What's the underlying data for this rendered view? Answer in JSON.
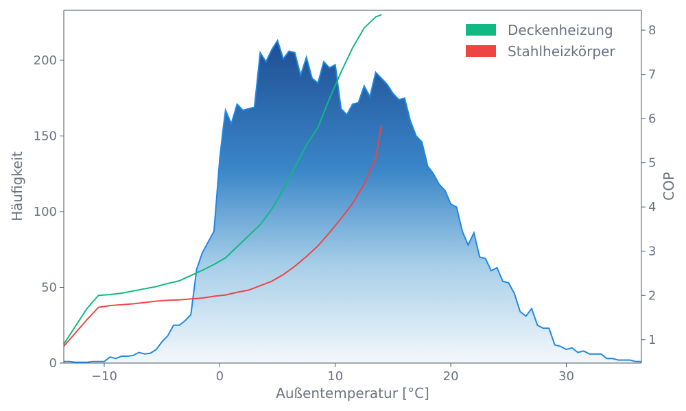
{
  "chart_data": {
    "type": "area",
    "xlabel": "Außentemperatur [°C]",
    "ylabel_left": "Häufigkeit",
    "ylabel_right": "COP",
    "xlim": [
      -13.5,
      36.5
    ],
    "ylim_left": [
      0,
      233
    ],
    "ylim_right": [
      0.47,
      8.45
    ],
    "x_ticks": [
      -10,
      0,
      10,
      20,
      30
    ],
    "x_tick_labels": [
      "−10",
      "0",
      "10",
      "20",
      "30"
    ],
    "y_left_ticks": [
      0,
      50,
      100,
      150,
      200
    ],
    "y_left_tick_labels": [
      "0",
      "50",
      "100",
      "150",
      "200"
    ],
    "y_right_ticks": [
      1,
      2,
      3,
      4,
      5,
      6,
      7,
      8
    ],
    "y_right_tick_labels": [
      "1",
      "2",
      "3",
      "4",
      "5",
      "6",
      "7",
      "8"
    ],
    "grid": false,
    "legend_position": "top-right",
    "colors": {
      "histogram_line": "#1e88e5",
      "fill_top": "#1f4e93",
      "fill_mid": "#3a86c8",
      "fill_low": "#a8cfe8",
      "fill_bottom": "#f4f8fc",
      "axis": "#4b5563",
      "text": "#6b7280"
    },
    "histogram": {
      "x": [
        -13.5,
        -13,
        -12.5,
        -12,
        -11.5,
        -11,
        -10.5,
        -10,
        -9.5,
        -9,
        -8.5,
        -8,
        -7.5,
        -7,
        -6.5,
        -6,
        -5.5,
        -5,
        -4.5,
        -4,
        -3.5,
        -3,
        -2.5,
        -2,
        -1.5,
        -1,
        -0.5,
        0,
        0.3,
        0.5,
        1,
        1.5,
        2,
        2.5,
        3,
        3.5,
        4,
        4.5,
        5,
        5.5,
        6,
        6.5,
        7,
        7.5,
        8,
        8.5,
        9,
        9.5,
        10,
        10.5,
        11,
        11.5,
        12,
        12.5,
        13,
        13.5,
        14,
        14.5,
        15,
        15.5,
        16,
        16.5,
        17,
        17.5,
        18,
        18.5,
        19,
        19.5,
        20,
        20.5,
        21,
        21.5,
        22,
        22.5,
        23,
        23.5,
        24,
        24.5,
        25,
        25.5,
        26,
        26.5,
        27,
        27.5,
        28,
        28.5,
        29,
        29.5,
        30,
        30.5,
        31,
        31.5,
        32,
        32.5,
        33,
        33.5,
        34,
        34.5,
        35,
        35.5,
        36,
        36.5
      ],
      "values": [
        1,
        1,
        0.5,
        0.5,
        0.5,
        1,
        1,
        1,
        4,
        3,
        4.5,
        4.5,
        5,
        7,
        6,
        6.5,
        9,
        14,
        18,
        25,
        25,
        28,
        32,
        62,
        73,
        80,
        87,
        135,
        155,
        167,
        158,
        171,
        167,
        168,
        169,
        205,
        199,
        207,
        213,
        201,
        206,
        205,
        190,
        202,
        188,
        185,
        199,
        195,
        197,
        168,
        164,
        171,
        172,
        183,
        176,
        192,
        188,
        184,
        178,
        174,
        175,
        160,
        150,
        146,
        130,
        125,
        118,
        114,
        105,
        103,
        87,
        78,
        86,
        70,
        69,
        61,
        63,
        54,
        53,
        46,
        34,
        31,
        36,
        25,
        23,
        23,
        12,
        11,
        9,
        10,
        7,
        8,
        6,
        6,
        6,
        3,
        3,
        2,
        2,
        2,
        1,
        1
      ]
    },
    "series": [
      {
        "name": "Deckenheizung",
        "color": "#10b981",
        "x": [
          -13.5,
          -12.5,
          -11.5,
          -10.5,
          -9.5,
          -8.5,
          -7.5,
          -6.5,
          -5.5,
          -4.5,
          -3.5,
          -2.5,
          -1.5,
          -0.5,
          0.5,
          1.5,
          2.5,
          3.5,
          4.5,
          5.5,
          6.5,
          7.5,
          8.5,
          9.5,
          10.5,
          11.5,
          12.5,
          13.5,
          14
        ],
        "values": [
          0.9,
          1.3,
          1.7,
          2.0,
          2.02,
          2.05,
          2.1,
          2.15,
          2.2,
          2.27,
          2.33,
          2.45,
          2.57,
          2.7,
          2.85,
          3.1,
          3.35,
          3.6,
          3.95,
          4.4,
          4.9,
          5.4,
          5.8,
          6.45,
          7.05,
          7.6,
          8.05,
          8.3,
          8.35
        ]
      },
      {
        "name": "Stahlheizkörper",
        "color": "#ef4444",
        "x": [
          -13.5,
          -12.5,
          -11.5,
          -10.5,
          -9.5,
          -8.5,
          -7.5,
          -6.5,
          -5.5,
          -4.5,
          -3.5,
          -2.5,
          -1.5,
          -0.5,
          0.5,
          1.5,
          2.5,
          3.5,
          4.5,
          5.5,
          6.5,
          7.5,
          8.5,
          9.5,
          10.5,
          11.5,
          12.5,
          13.5,
          14
        ],
        "values": [
          0.85,
          1.15,
          1.45,
          1.73,
          1.77,
          1.79,
          1.81,
          1.84,
          1.87,
          1.89,
          1.9,
          1.92,
          1.94,
          1.98,
          2.01,
          2.07,
          2.12,
          2.22,
          2.32,
          2.47,
          2.66,
          2.88,
          3.12,
          3.42,
          3.74,
          4.08,
          4.52,
          5.1,
          5.85
        ]
      }
    ]
  }
}
